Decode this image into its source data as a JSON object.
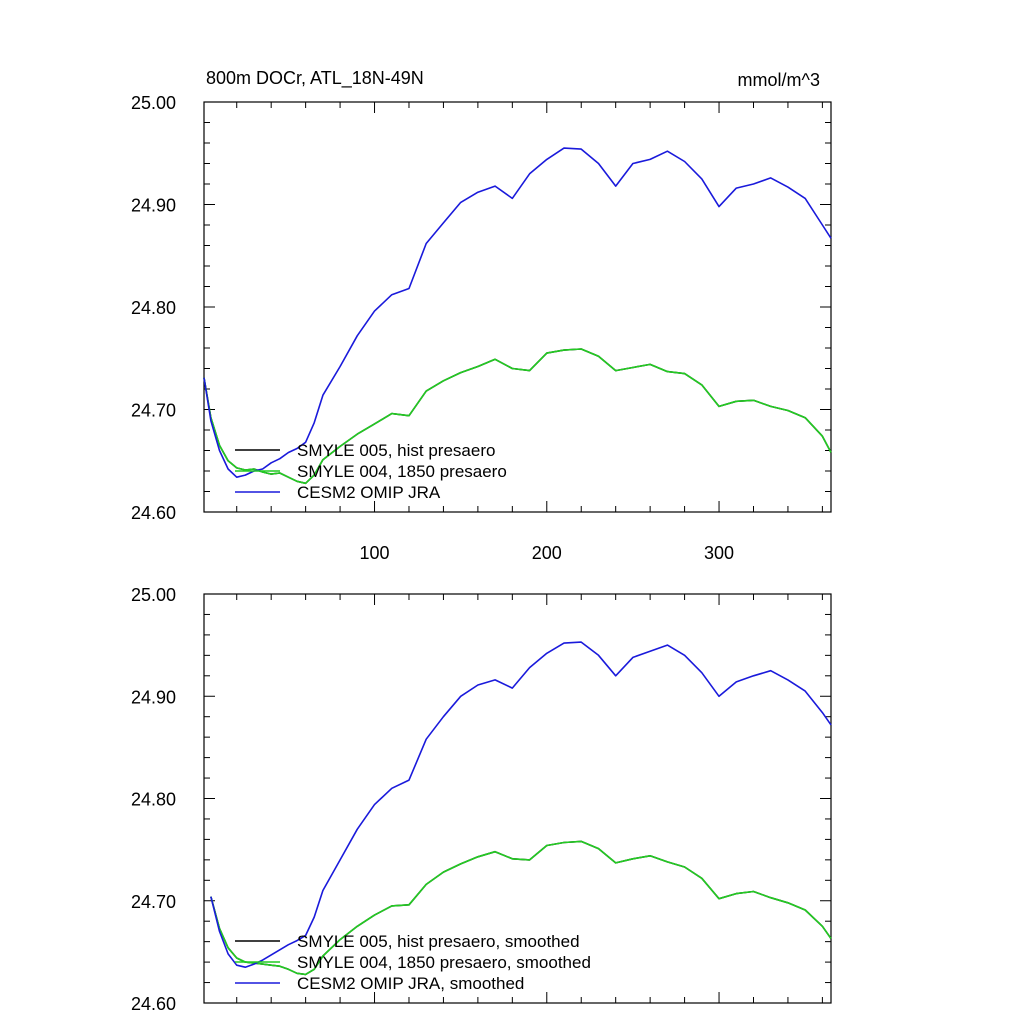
{
  "chart_data": [
    {
      "type": "line",
      "title": "800m DOCr, ATL_18N-49N",
      "units": "mmol/m^3",
      "xlim": [
        1,
        365
      ],
      "ylim": [
        24.6,
        25.0
      ],
      "yticks": [
        "24.60",
        "24.70",
        "24.80",
        "24.90",
        "25.00"
      ],
      "xticks": [
        "100",
        "200",
        "300"
      ],
      "legend": [
        "SMYLE 005, hist presaero",
        "SMYLE 004, 1850 presaero",
        "CESM2 OMIP JRA"
      ],
      "colors": [
        "#000000",
        "#22cc22",
        "#1a1adb"
      ],
      "series": [
        {
          "name": "SMYLE 005, hist presaero",
          "x": [
            1,
            5,
            10,
            15,
            20,
            25,
            30,
            35,
            40,
            45,
            50,
            55,
            60,
            65,
            70,
            80,
            90,
            100,
            110,
            120,
            130,
            140,
            150,
            160,
            170,
            180,
            190,
            200,
            210,
            220,
            230,
            240,
            250,
            260,
            270,
            280,
            290,
            300,
            310,
            320,
            330,
            340,
            350,
            360,
            365
          ],
          "y": [
            24.731,
            24.692,
            24.665,
            24.65,
            24.643,
            24.641,
            24.642,
            24.639,
            24.637,
            24.638,
            24.634,
            24.63,
            24.628,
            24.636,
            24.651,
            24.664,
            24.676,
            24.686,
            24.696,
            24.694,
            24.718,
            24.728,
            24.736,
            24.742,
            24.749,
            24.74,
            24.738,
            24.755,
            24.758,
            24.759,
            24.752,
            24.738,
            24.741,
            24.744,
            24.737,
            24.735,
            24.724,
            24.703,
            24.708,
            24.709,
            24.703,
            24.699,
            24.692,
            24.674,
            24.658
          ]
        },
        {
          "name": "SMYLE 004, 1850 presaero",
          "x": [
            1,
            5,
            10,
            15,
            20,
            25,
            30,
            35,
            40,
            45,
            50,
            55,
            60,
            65,
            70,
            80,
            90,
            100,
            110,
            120,
            130,
            140,
            150,
            160,
            170,
            180,
            190,
            200,
            210,
            220,
            230,
            240,
            250,
            260,
            270,
            280,
            290,
            300,
            310,
            320,
            330,
            340,
            350,
            360,
            365
          ],
          "y": [
            24.731,
            24.692,
            24.665,
            24.65,
            24.643,
            24.641,
            24.642,
            24.639,
            24.637,
            24.638,
            24.634,
            24.63,
            24.628,
            24.636,
            24.651,
            24.664,
            24.676,
            24.686,
            24.696,
            24.694,
            24.718,
            24.728,
            24.736,
            24.742,
            24.749,
            24.74,
            24.738,
            24.755,
            24.758,
            24.759,
            24.752,
            24.738,
            24.741,
            24.744,
            24.737,
            24.735,
            24.724,
            24.703,
            24.708,
            24.709,
            24.703,
            24.699,
            24.692,
            24.674,
            24.658
          ]
        },
        {
          "name": "CESM2 OMIP JRA",
          "x": [
            1,
            5,
            10,
            15,
            20,
            25,
            30,
            35,
            40,
            45,
            50,
            55,
            60,
            65,
            70,
            80,
            90,
            100,
            110,
            120,
            130,
            140,
            150,
            160,
            170,
            180,
            190,
            200,
            210,
            220,
            230,
            240,
            250,
            260,
            270,
            280,
            290,
            300,
            310,
            320,
            330,
            340,
            350,
            360,
            365
          ],
          "y": [
            24.731,
            24.689,
            24.66,
            24.642,
            24.634,
            24.636,
            24.64,
            24.642,
            24.648,
            24.652,
            24.658,
            24.662,
            24.668,
            24.687,
            24.714,
            24.742,
            24.772,
            24.796,
            24.812,
            24.818,
            24.862,
            24.882,
            24.902,
            24.912,
            24.918,
            24.906,
            24.93,
            24.944,
            24.955,
            24.954,
            24.94,
            24.918,
            24.94,
            24.944,
            24.952,
            24.942,
            24.925,
            24.898,
            24.916,
            24.92,
            24.926,
            24.917,
            24.906,
            24.88,
            24.867
          ]
        }
      ]
    },
    {
      "type": "line",
      "xlim": [
        1,
        365
      ],
      "ylim": [
        24.6,
        25.0
      ],
      "yticks": [
        "24.60",
        "24.70",
        "24.80",
        "24.90",
        "25.00"
      ],
      "legend": [
        "SMYLE 005, hist presaero, smoothed",
        "SMYLE 004, 1850 presaero, smoothed",
        "CESM2 OMIP JRA, smoothed"
      ],
      "colors": [
        "#000000",
        "#22cc22",
        "#1a1adb"
      ],
      "series": [
        {
          "name": "SMYLE 005, hist presaero, smoothed",
          "x": [
            5,
            10,
            15,
            20,
            25,
            30,
            35,
            40,
            45,
            50,
            55,
            60,
            65,
            70,
            80,
            90,
            100,
            110,
            120,
            130,
            140,
            150,
            160,
            170,
            180,
            190,
            200,
            210,
            220,
            230,
            240,
            250,
            260,
            270,
            280,
            290,
            300,
            310,
            320,
            330,
            340,
            350,
            360,
            365
          ],
          "y": [
            24.704,
            24.673,
            24.654,
            24.644,
            24.64,
            24.639,
            24.638,
            24.637,
            24.636,
            24.633,
            24.629,
            24.628,
            24.633,
            24.646,
            24.662,
            24.675,
            24.686,
            24.695,
            24.696,
            24.716,
            24.728,
            24.736,
            24.743,
            24.748,
            24.741,
            24.74,
            24.754,
            24.757,
            24.758,
            24.751,
            24.737,
            24.741,
            24.744,
            24.738,
            24.733,
            24.722,
            24.702,
            24.707,
            24.709,
            24.703,
            24.698,
            24.691,
            24.675,
            24.663
          ]
        },
        {
          "name": "SMYLE 004, 1850 presaero, smoothed",
          "x": [
            5,
            10,
            15,
            20,
            25,
            30,
            35,
            40,
            45,
            50,
            55,
            60,
            65,
            70,
            80,
            90,
            100,
            110,
            120,
            130,
            140,
            150,
            160,
            170,
            180,
            190,
            200,
            210,
            220,
            230,
            240,
            250,
            260,
            270,
            280,
            290,
            300,
            310,
            320,
            330,
            340,
            350,
            360,
            365
          ],
          "y": [
            24.704,
            24.673,
            24.654,
            24.644,
            24.64,
            24.639,
            24.638,
            24.637,
            24.636,
            24.633,
            24.629,
            24.628,
            24.633,
            24.646,
            24.662,
            24.675,
            24.686,
            24.695,
            24.696,
            24.716,
            24.728,
            24.736,
            24.743,
            24.748,
            24.741,
            24.74,
            24.754,
            24.757,
            24.758,
            24.751,
            24.737,
            24.741,
            24.744,
            24.738,
            24.733,
            24.722,
            24.702,
            24.707,
            24.709,
            24.703,
            24.698,
            24.691,
            24.675,
            24.663
          ]
        },
        {
          "name": "CESM2 OMIP JRA, smoothed",
          "x": [
            5,
            10,
            15,
            20,
            25,
            30,
            35,
            40,
            45,
            50,
            55,
            60,
            65,
            70,
            80,
            90,
            100,
            110,
            120,
            130,
            140,
            150,
            160,
            170,
            180,
            190,
            200,
            210,
            220,
            230,
            240,
            250,
            260,
            270,
            280,
            290,
            300,
            310,
            320,
            330,
            340,
            350,
            360,
            365
          ],
          "y": [
            24.704,
            24.67,
            24.648,
            24.637,
            24.635,
            24.638,
            24.642,
            24.647,
            24.652,
            24.657,
            24.661,
            24.666,
            24.684,
            24.71,
            24.74,
            24.77,
            24.794,
            24.81,
            24.818,
            24.858,
            24.88,
            24.9,
            24.911,
            24.916,
            24.908,
            24.928,
            24.942,
            24.952,
            24.953,
            24.94,
            24.92,
            24.938,
            24.944,
            24.95,
            24.94,
            24.923,
            24.9,
            24.914,
            24.92,
            24.925,
            24.916,
            24.905,
            24.884,
            24.872
          ]
        }
      ]
    }
  ]
}
